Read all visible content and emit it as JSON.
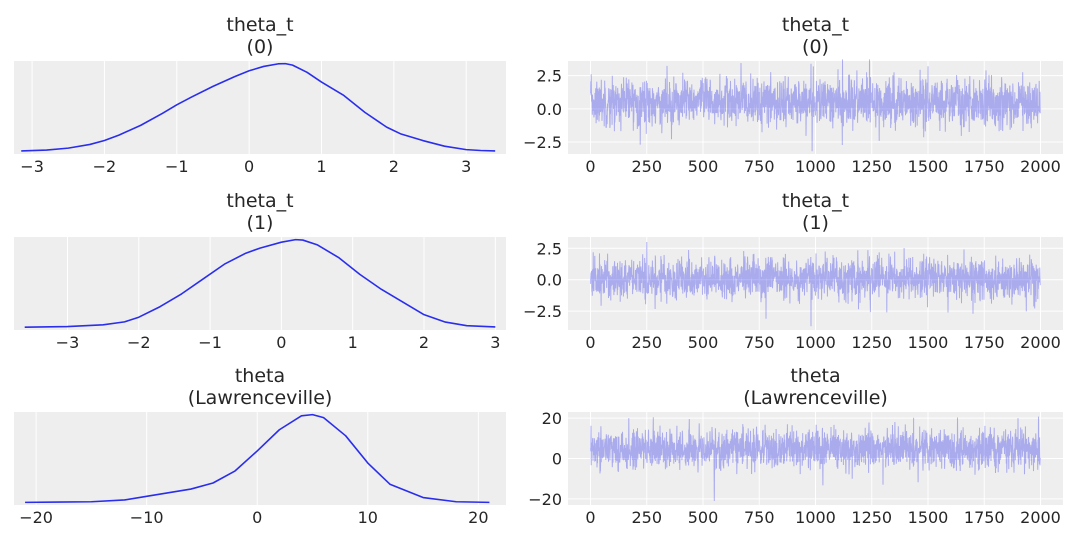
{
  "chart_data": [
    {
      "type": "line",
      "kind": "density",
      "title": [
        "theta_t",
        "(0)"
      ],
      "xlim": [
        -3.25,
        3.55
      ],
      "x_ticks": [
        -3,
        -2,
        -1,
        0,
        1,
        2,
        3
      ],
      "x_tick_labels": [
        "−3",
        "−2",
        "−1",
        "0",
        "1",
        "2",
        "3"
      ],
      "y_ticks": [],
      "series": [
        {
          "x": [
            -3.15,
            -2.8,
            -2.5,
            -2.2,
            -2.0,
            -1.8,
            -1.5,
            -1.2,
            -1.0,
            -0.8,
            -0.5,
            -0.2,
            0.0,
            0.2,
            0.4,
            0.5,
            0.6,
            0.8,
            1.0,
            1.3,
            1.6,
            1.9,
            2.1,
            2.4,
            2.7,
            3.0,
            3.2,
            3.4
          ],
          "y": [
            0.002,
            0.006,
            0.015,
            0.032,
            0.05,
            0.075,
            0.12,
            0.175,
            0.215,
            0.25,
            0.3,
            0.345,
            0.372,
            0.392,
            0.404,
            0.405,
            0.398,
            0.365,
            0.32,
            0.26,
            0.18,
            0.112,
            0.08,
            0.05,
            0.024,
            0.008,
            0.004,
            0.002
          ]
        }
      ],
      "grid": true,
      "color": "#2a2eec"
    },
    {
      "type": "line",
      "kind": "trace",
      "title": [
        "theta_t",
        "(0)"
      ],
      "xlim": [
        -100,
        2100
      ],
      "x_ticks": [
        0,
        250,
        500,
        750,
        1000,
        1250,
        1500,
        1750,
        2000
      ],
      "x_tick_labels": [
        "0",
        "250",
        "500",
        "750",
        "1000",
        "1250",
        "1500",
        "1750",
        "2000"
      ],
      "y_ticks": [
        -2.5,
        0.0,
        2.5
      ],
      "y_tick_labels": [
        "−2.5",
        "0.0",
        "2.5"
      ],
      "ylim": [
        -3.4,
        3.6
      ],
      "n_draws": 2000,
      "center": 0.5,
      "spread": 0.9,
      "extremes": [
        [
          980,
          3.4
        ],
        [
          985,
          -3.2
        ],
        [
          1500,
          3.2
        ],
        [
          2000,
          -2.6
        ]
      ],
      "color": "#2a2eec",
      "opacity": 0.35,
      "grid": true
    },
    {
      "type": "line",
      "kind": "density",
      "title": [
        "theta_t",
        "(1)"
      ],
      "xlim": [
        -3.75,
        3.15
      ],
      "x_ticks": [
        -3,
        -2,
        -1,
        0,
        1,
        2,
        3
      ],
      "x_tick_labels": [
        "−3",
        "−2",
        "−1",
        "0",
        "1",
        "2",
        "3"
      ],
      "y_ticks": [],
      "series": [
        {
          "x": [
            -3.6,
            -3.0,
            -2.5,
            -2.2,
            -2.0,
            -1.7,
            -1.4,
            -1.1,
            -0.8,
            -0.5,
            -0.3,
            0.0,
            0.2,
            0.3,
            0.5,
            0.8,
            1.1,
            1.4,
            1.7,
            2.0,
            2.3,
            2.6,
            3.0
          ],
          "y": [
            0.001,
            0.004,
            0.012,
            0.026,
            0.048,
            0.098,
            0.158,
            0.228,
            0.298,
            0.35,
            0.374,
            0.402,
            0.414,
            0.412,
            0.39,
            0.33,
            0.25,
            0.18,
            0.12,
            0.06,
            0.025,
            0.008,
            0.002
          ]
        }
      ],
      "grid": true,
      "color": "#2a2eec"
    },
    {
      "type": "line",
      "kind": "trace",
      "title": [
        "theta_t",
        "(1)"
      ],
      "xlim": [
        -100,
        2100
      ],
      "x_ticks": [
        0,
        250,
        500,
        750,
        1000,
        1250,
        1500,
        1750,
        2000
      ],
      "x_tick_labels": [
        "0",
        "250",
        "500",
        "750",
        "1000",
        "1250",
        "1500",
        "1750",
        "2000"
      ],
      "y_ticks": [
        -2.5,
        0.0,
        2.5
      ],
      "y_tick_labels": [
        "−2.5",
        "0.0",
        "2.5"
      ],
      "ylim": [
        -4.0,
        3.4
      ],
      "n_draws": 2000,
      "center": 0.1,
      "spread": 0.85,
      "extremes": [
        [
          250,
          3.0
        ],
        [
          780,
          -3.1
        ],
        [
          980,
          -3.7
        ],
        [
          1700,
          -2.7
        ]
      ],
      "color": "#2a2eec",
      "opacity": 0.35,
      "grid": true
    },
    {
      "type": "line",
      "kind": "density",
      "title": [
        "theta",
        "(Lawrenceville)"
      ],
      "xlim": [
        -22,
        22.5
      ],
      "x_ticks": [
        -20,
        -10,
        0,
        10,
        20
      ],
      "x_tick_labels": [
        "−20",
        "−10",
        "0",
        "10",
        "20"
      ],
      "y_ticks": [],
      "series": [
        {
          "x": [
            -21,
            -18,
            -15,
            -12,
            -10,
            -8,
            -6,
            -4,
            -2,
            0,
            2,
            4,
            5,
            6,
            8,
            10,
            12,
            15,
            18,
            21
          ],
          "y": [
            0.0,
            0.0005,
            0.001,
            0.004,
            0.01,
            0.016,
            0.022,
            0.032,
            0.052,
            0.085,
            0.12,
            0.143,
            0.145,
            0.14,
            0.11,
            0.065,
            0.03,
            0.008,
            0.001,
            0.0
          ]
        }
      ],
      "grid": true,
      "color": "#2a2eec"
    },
    {
      "type": "line",
      "kind": "trace",
      "title": [
        "theta",
        "(Lawrenceville)"
      ],
      "xlim": [
        -100,
        2100
      ],
      "x_ticks": [
        0,
        250,
        500,
        750,
        1000,
        1250,
        1500,
        1750,
        2000
      ],
      "x_tick_labels": [
        "0",
        "250",
        "500",
        "750",
        "1000",
        "1250",
        "1500",
        "1750",
        "2000"
      ],
      "y_ticks": [
        -20,
        0,
        20
      ],
      "y_tick_labels": [
        "−20",
        "0",
        "20"
      ],
      "ylim": [
        -23,
        23
      ],
      "n_draws": 2000,
      "center": 4.5,
      "spread": 5.0,
      "extremes": [
        [
          170,
          20
        ],
        [
          550,
          -21
        ],
        [
          1300,
          -13
        ],
        [
          1900,
          20
        ]
      ],
      "color": "#2a2eec",
      "opacity": 0.35,
      "grid": true
    }
  ]
}
